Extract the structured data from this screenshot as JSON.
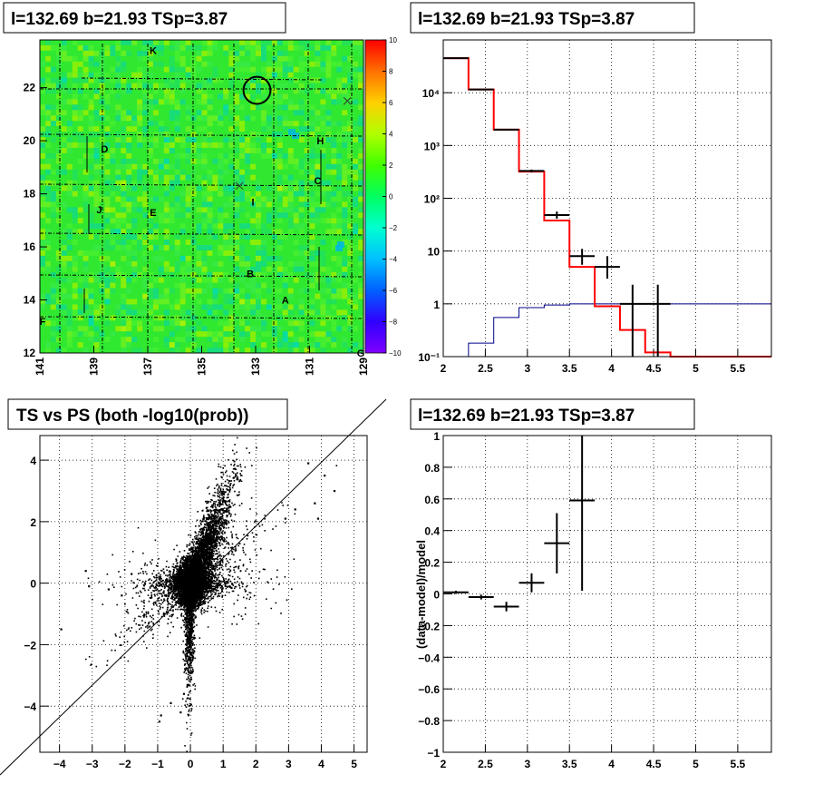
{
  "panels": {
    "map_title": "l=132.69 b=21.93 TSp=3.87",
    "spectrum_title": "l=132.69 b=21.93 TSp=3.87",
    "scatter_title": "TS vs PS (both -log10(prob))",
    "ratio_title": "l=132.69 b=21.93 TSp=3.87"
  },
  "colors": {
    "map_background": "#30e830",
    "data_black": "#000000",
    "model_red": "#ff0000",
    "model_blue": "#00008b"
  },
  "chart_data": [
    {
      "type": "heatmap",
      "panel": "map",
      "title": "l=132.69 b=21.93 TSp=3.87",
      "xlim": [
        141,
        129
      ],
      "ylim": [
        12,
        23.8
      ],
      "x_ticks": [
        "141",
        "139",
        "137",
        "135",
        "133",
        "131",
        "129"
      ],
      "y_ticks": [
        "12",
        "14",
        "16",
        "18",
        "20",
        "22"
      ],
      "colorbar": {
        "min": -10,
        "max": 10,
        "ticks": [
          "10",
          "8",
          "6",
          "4",
          "2",
          "0",
          "−2",
          "−4",
          "−6",
          "−8",
          "−10"
        ]
      },
      "labels": [
        {
          "text": "K",
          "x": 136.8,
          "y": 23.4
        },
        {
          "text": "D",
          "x": 138.6,
          "y": 19.7
        },
        {
          "text": "H",
          "x": 130.6,
          "y": 20.0
        },
        {
          "text": "C",
          "x": 130.7,
          "y": 18.5
        },
        {
          "text": "J",
          "x": 138.8,
          "y": 17.4
        },
        {
          "text": "E",
          "x": 136.8,
          "y": 17.3
        },
        {
          "text": "I",
          "x": 133.1,
          "y": 17.7
        },
        {
          "text": "B",
          "x": 133.2,
          "y": 15.0
        },
        {
          "text": "A",
          "x": 131.9,
          "y": 14.0
        },
        {
          "text": "F",
          "x": 140.9,
          "y": 13.2
        },
        {
          "text": "G",
          "x": 129.1,
          "y": 12.0
        }
      ],
      "circle": {
        "x": 132.95,
        "y": 21.9,
        "r": 0.5
      },
      "crosses": [
        {
          "x": 133.6,
          "y": 18.3
        },
        {
          "x": 129.6,
          "y": 21.5
        }
      ]
    },
    {
      "type": "line",
      "panel": "spectrum",
      "title": "l=132.69 b=21.93 TSp=3.87",
      "xlim": [
        2,
        5.9
      ],
      "ylim": [
        0.1,
        100000
      ],
      "log_y": true,
      "grid": true,
      "x_ticks": [
        "2",
        "2.5",
        "3",
        "3.5",
        "4",
        "4.5",
        "5",
        "5.5"
      ],
      "y_ticks": [
        {
          "v": 0.1,
          "label": "10⁻¹"
        },
        {
          "v": 1,
          "label": "1"
        },
        {
          "v": 10,
          "label": "10"
        },
        {
          "v": 100,
          "label": "10²"
        },
        {
          "v": 1000,
          "label": "10³"
        },
        {
          "v": 10000,
          "label": "10⁴"
        }
      ],
      "bin_edges": [
        2.0,
        2.3,
        2.6,
        2.9,
        3.2,
        3.5,
        3.8,
        4.1,
        4.4,
        4.7,
        5.0,
        5.3,
        5.6,
        5.9
      ],
      "series": [
        {
          "values": [
            45000,
            11500,
            2000,
            320,
            38,
            5,
            0.9,
            0.32,
            0.12,
            0.1,
            0.1,
            0.1,
            0.1
          ]
        },
        {
          "values": [
            0.1,
            0.18,
            0.55,
            0.85,
            0.95,
            1.0,
            1.0,
            1.0,
            1.0,
            1.0,
            1.0,
            1.0,
            1.0
          ]
        },
        {
          "points": [
            {
              "x": 2.15,
              "y": 45000,
              "lo": 44500,
              "hi": 45500
            },
            {
              "x": 2.45,
              "y": 11500,
              "lo": 11300,
              "hi": 11700
            },
            {
              "x": 2.75,
              "y": 2000,
              "lo": 1950,
              "hi": 2050
            },
            {
              "x": 3.05,
              "y": 330,
              "lo": 310,
              "hi": 350
            },
            {
              "x": 3.35,
              "y": 48,
              "lo": 41,
              "hi": 56
            },
            {
              "x": 3.65,
              "y": 8,
              "lo": 5.5,
              "hi": 11
            },
            {
              "x": 3.95,
              "y": 5,
              "lo": 3,
              "hi": 8
            },
            {
              "x": 4.25,
              "y": 1,
              "lo": 0.1,
              "hi": 2.3
            },
            {
              "x": 4.55,
              "y": 1,
              "lo": 0.1,
              "hi": 2.3
            }
          ]
        }
      ]
    },
    {
      "type": "scatter",
      "panel": "scatter",
      "title": "TS vs PS (both -log10(prob))",
      "xlim": [
        -4.6,
        5.4
      ],
      "ylim": [
        -5.5,
        4.8
      ],
      "grid": true,
      "x_ticks": [
        "−4",
        "−3",
        "−2",
        "−1",
        "0",
        "1",
        "2",
        "3",
        "4",
        "5"
      ],
      "y_ticks": [
        "−4",
        "−2",
        "0",
        "2",
        "4"
      ],
      "diagonal": {
        "from": [
          -5,
          -5
        ],
        "to": [
          6,
          6
        ]
      },
      "outliers": [
        [
          -3.95,
          -1.5
        ],
        [
          -3.2,
          0.4
        ],
        [
          -3.1,
          -0.1
        ],
        [
          -2.5,
          -0.2
        ],
        [
          -2.1,
          -0.4
        ],
        [
          -1.8,
          0.3
        ],
        [
          -0.9,
          -4.3
        ],
        [
          -0.6,
          -3.9
        ],
        [
          -0.3,
          -4.2
        ],
        [
          -0.95,
          -4.5
        ],
        [
          -0.2,
          -3.6
        ],
        [
          3.6,
          3.9
        ],
        [
          3.9,
          2.1
        ],
        [
          4.4,
          3.0
        ],
        [
          4.1,
          3.5
        ],
        [
          3.2,
          2.4
        ],
        [
          3.8,
          2.6
        ],
        [
          2.9,
          2.1
        ]
      ]
    },
    {
      "type": "scatter",
      "panel": "ratio",
      "title": "l=132.69 b=21.93 TSp=3.87",
      "ylabel": "(data-model)/model",
      "xlim": [
        2,
        5.9
      ],
      "ylim": [
        -1,
        1
      ],
      "grid": true,
      "x_ticks": [
        "2",
        "2.5",
        "3",
        "3.5",
        "4",
        "4.5",
        "5",
        "5.5"
      ],
      "y_ticks": [
        "−1",
        "−0.8",
        "−0.6",
        "−0.4",
        "−0.2",
        "0",
        "0.2",
        "0.4",
        "0.6",
        "0.8",
        "1"
      ],
      "points": [
        {
          "x": 2.15,
          "y": 0.01,
          "lo": 0.0,
          "hi": 0.02
        },
        {
          "x": 2.45,
          "y": -0.02,
          "lo": -0.035,
          "hi": -0.005
        },
        {
          "x": 2.75,
          "y": -0.08,
          "lo": -0.11,
          "hi": -0.05
        },
        {
          "x": 3.05,
          "y": 0.07,
          "lo": 0.01,
          "hi": 0.13
        },
        {
          "x": 3.35,
          "y": 0.32,
          "lo": 0.13,
          "hi": 0.51
        },
        {
          "x": 3.65,
          "y": 0.59,
          "lo": 0.02,
          "hi": 1.0
        }
      ]
    }
  ]
}
